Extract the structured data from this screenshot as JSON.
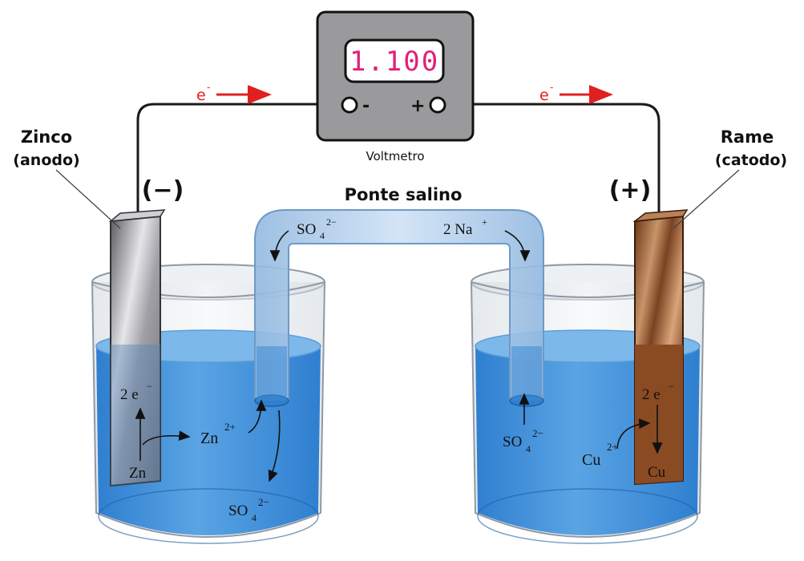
{
  "voltmeter": {
    "reading": "1.100",
    "label": "Voltmetro",
    "minus": "-",
    "plus": "+"
  },
  "electron_flow": {
    "left": "e",
    "right": "e",
    "charge": "-"
  },
  "anode": {
    "name": "Zinco",
    "role": "(anodo)",
    "sign": "(−)",
    "electrons": "2 e",
    "electrons_charge": "−",
    "atom": "Zn",
    "ion_base": "Zn",
    "ion_charge": "2+",
    "sulfate_base": "SO",
    "sulfate_sub": "4",
    "sulfate_charge": "2−"
  },
  "cathode": {
    "name": "Rame",
    "role": "(catodo)",
    "sign": "(+)",
    "electrons": "2 e",
    "electrons_charge": "−",
    "atom": "Cu",
    "ion_base": "Cu",
    "ion_charge": "2+",
    "sulfate_base": "SO",
    "sulfate_sub": "4",
    "sulfate_charge": "2−"
  },
  "salt_bridge": {
    "title": "Ponte salino",
    "anion_base": "SO",
    "anion_sub": "4",
    "anion_charge": "2−",
    "cation_base": "2 Na",
    "cation_charge": "+"
  },
  "colors": {
    "wire": "#1a1a1a",
    "electron_arrow": "#e02020",
    "display_text": "#e0207a",
    "voltmeter_body": "#9a9a9c",
    "solution": "#4a95d8",
    "bridge": "#b5d2ee",
    "zinc": "#a8a8ac",
    "copper": "#8a4a22"
  }
}
